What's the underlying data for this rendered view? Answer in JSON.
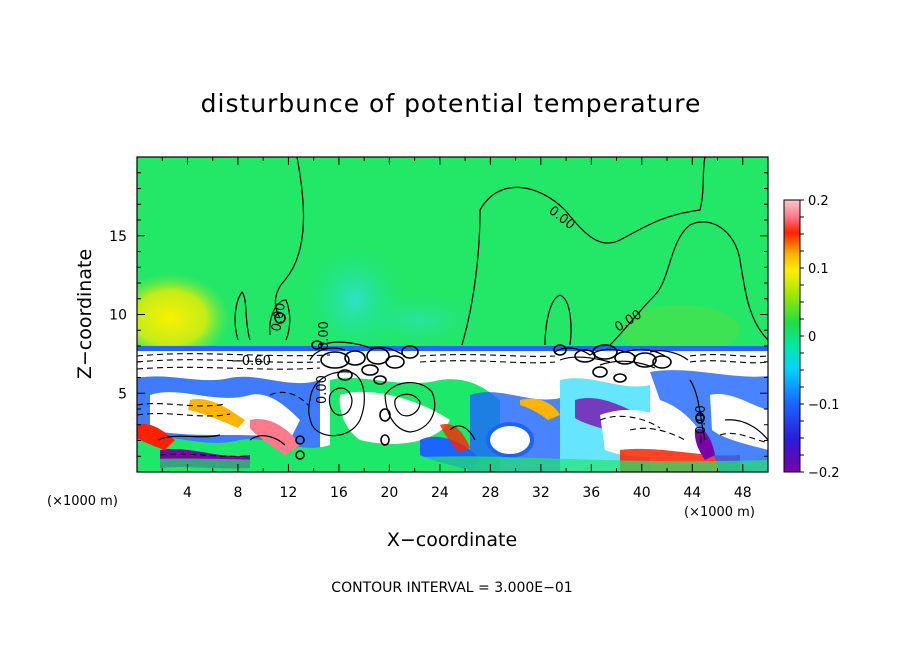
{
  "chart_data": {
    "type": "heatmap",
    "title": "disturbunce of potential temperature",
    "xlabel": "X−coordinate",
    "ylabel": "Z−coordinate",
    "x_unit_left": "(×1000 m)",
    "x_unit_right": "(×1000 m)",
    "xlim": [
      0,
      50
    ],
    "ylim": [
      0,
      20
    ],
    "x_ticks": [
      4,
      8,
      12,
      16,
      20,
      24,
      28,
      32,
      36,
      40,
      44,
      48
    ],
    "y_ticks": [
      5,
      10,
      15
    ],
    "colorbar": {
      "range": [
        -0.2,
        0.2
      ],
      "tick_values": [
        0.2,
        0.1,
        0,
        -0.1,
        -0.2
      ],
      "tick_labels": [
        "0.2",
        "0.1",
        "0",
        "−0.1",
        "−0.2"
      ]
    },
    "contour_labels": [
      "0.00",
      "0.00",
      "0.00",
      "−0.60",
      "0.00",
      "0.00",
      "−0.00"
    ],
    "footer": "CONTOUR INTERVAL = 3.000E−01"
  }
}
